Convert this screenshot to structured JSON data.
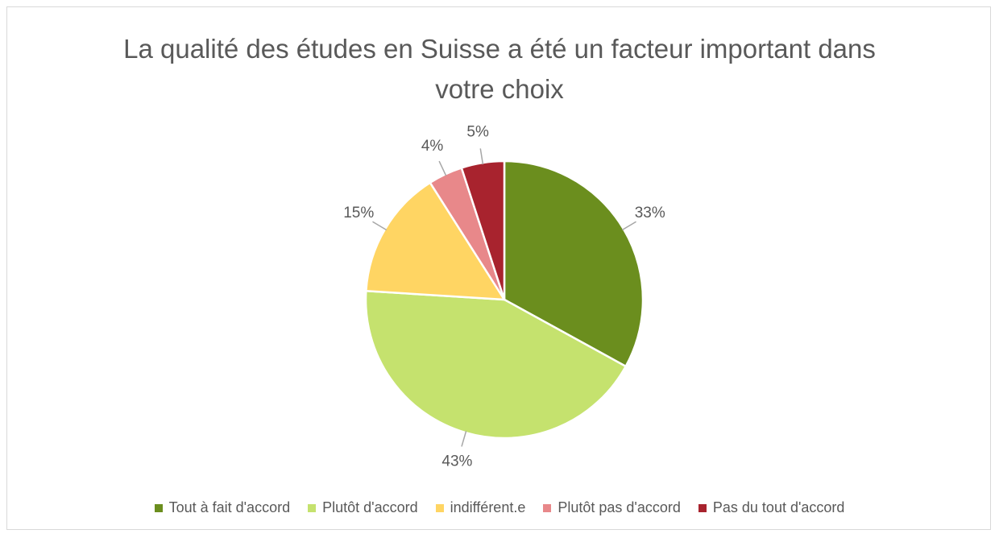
{
  "chart_data": {
    "type": "pie",
    "title": "La qualité des études en Suisse a été un facteur important dans votre choix",
    "categories": [
      "Tout à fait d'accord",
      "Plutôt d'accord",
      "indifférent.e",
      "Plutôt pas d'accord",
      "Pas du tout d'accord"
    ],
    "values": [
      33,
      43,
      15,
      4,
      5
    ],
    "value_labels": [
      "33%",
      "43%",
      "15%",
      "4%",
      "5%"
    ],
    "colors": [
      "#6b8e1e",
      "#c5e26e",
      "#ffd563",
      "#e8888a",
      "#a8232e"
    ],
    "legend": "bottom"
  }
}
